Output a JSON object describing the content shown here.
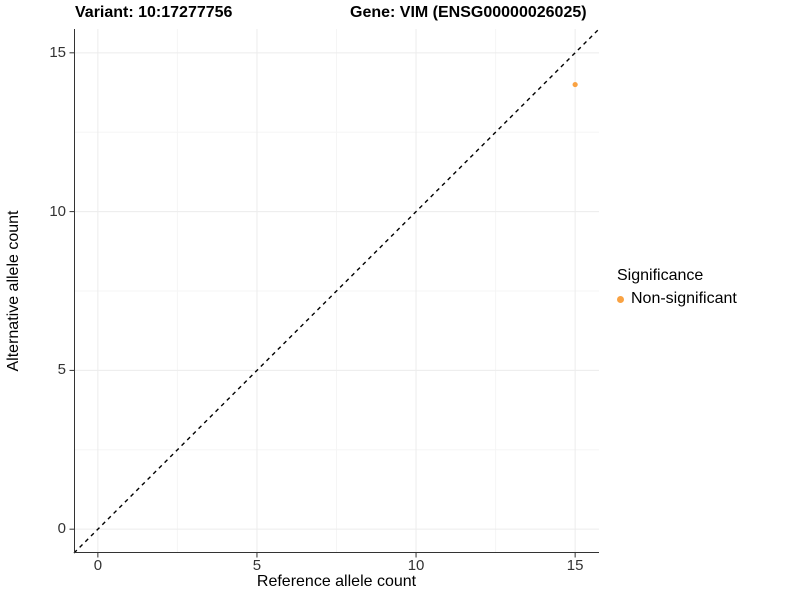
{
  "title": {
    "variant_label": "Variant: 10:17277756",
    "gene_label": "Gene: VIM (ENSG00000026025)"
  },
  "legend": {
    "title": "Significance",
    "items": [
      {
        "label": "Non-significant",
        "color": "#F9A242"
      }
    ]
  },
  "colors": {
    "point": "#F9A242",
    "grid_major": "#ECECEC",
    "grid_minor": "#F5F5F5",
    "axis_line": "#333333",
    "tick_mark": "#333333",
    "reference_line": "#000000",
    "text": "#000000"
  },
  "chart_data": {
    "type": "scatter",
    "title": "Variant: 10:17277756    Gene: VIM (ENSG00000026025)",
    "xlabel": "Reference allele count",
    "ylabel": "Alternative allele count",
    "xlim": [
      -0.75,
      15.75
    ],
    "ylim": [
      -0.75,
      15.75
    ],
    "x_ticks": [
      0,
      5,
      10,
      15
    ],
    "y_ticks": [
      0,
      5,
      10,
      15
    ],
    "x_minor_ticks": [
      2.5,
      7.5,
      12.5
    ],
    "y_minor_ticks": [
      2.5,
      7.5,
      12.5
    ],
    "grid": true,
    "legend_title": "Significance",
    "legend_position": "right",
    "series": [
      {
        "name": "Non-significant",
        "color": "#F9A242",
        "points": [
          {
            "x": 15,
            "y": 14
          }
        ]
      }
    ],
    "reference_line": {
      "type": "identity",
      "style": "dashed",
      "color": "#000000",
      "from": [
        -0.75,
        -0.75
      ],
      "to": [
        15.75,
        15.75
      ]
    }
  }
}
